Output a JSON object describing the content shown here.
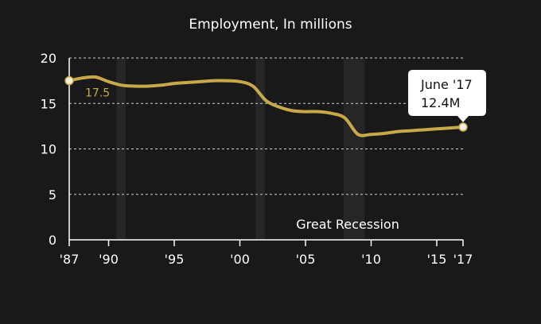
{
  "chart_data": {
    "type": "line",
    "title": "Employment, In millions",
    "xlabel": "",
    "ylabel": "",
    "xlim": [
      1987,
      2017
    ],
    "ylim": [
      0,
      20
    ],
    "yticks": [
      0,
      5,
      10,
      15,
      20
    ],
    "yticklabels": [
      "0",
      "5",
      "10",
      "15",
      "20"
    ],
    "xticks": [
      1987,
      1990,
      1995,
      2000,
      2005,
      2010,
      2015,
      2017
    ],
    "xticklabels": [
      "'87",
      "'90",
      "'95",
      "'00",
      "'05",
      "'10",
      "'15",
      "'17"
    ],
    "grid": "horizontal dashed",
    "series": [
      {
        "x": [
          1987,
          1988,
          1989,
          1990,
          1991,
          1992,
          1993,
          1994,
          1995,
          1996,
          1997,
          1998,
          1999,
          2000,
          2001,
          2002,
          2003,
          2004,
          2005,
          2006,
          2007,
          2008,
          2009,
          2010,
          2011,
          2012,
          2013,
          2014,
          2015,
          2016,
          2017
        ],
        "y": [
          17.5,
          17.8,
          17.9,
          17.4,
          17.0,
          16.9,
          16.9,
          17.0,
          17.2,
          17.3,
          17.4,
          17.5,
          17.5,
          17.4,
          16.9,
          15.3,
          14.6,
          14.2,
          14.1,
          14.1,
          13.9,
          13.4,
          11.6,
          11.6,
          11.7,
          11.9,
          12.0,
          12.1,
          12.2,
          12.3,
          12.4
        ],
        "color": "#c9a84a"
      }
    ],
    "recessions": [
      [
        1990.6,
        1991.3
      ],
      [
        2001.2,
        2001.9
      ],
      [
        2007.9,
        2009.5
      ]
    ],
    "annotations": {
      "start_label": {
        "x": 1987,
        "y": 17.5,
        "text": "17.5"
      },
      "end_callout": {
        "x": 2017,
        "y": 12.4,
        "line1": "June '17",
        "line2": "12.4M"
      },
      "recession_label": "Great Recession"
    }
  }
}
